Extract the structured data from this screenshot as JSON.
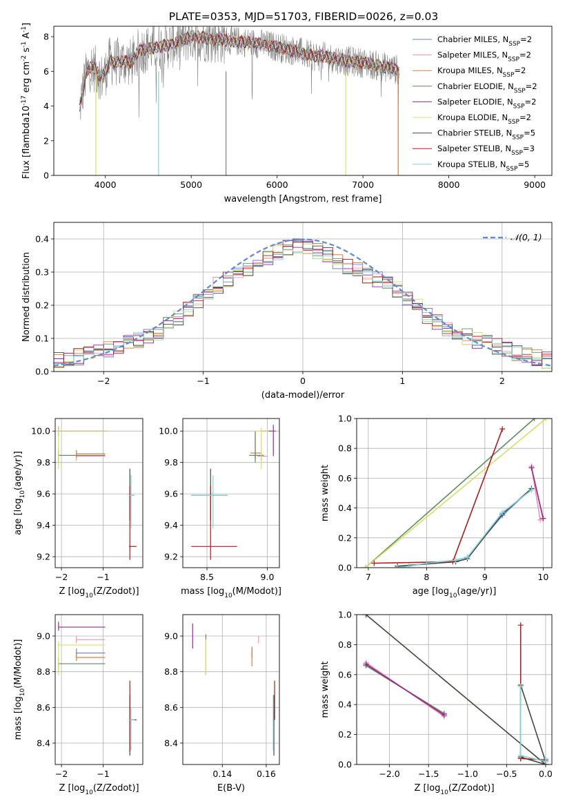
{
  "title": "PLATE=0353, MJD=51703, FIBERID=0026, z=0.03",
  "colors": {
    "series": [
      "#6b7fd7",
      "#f28fb1",
      "#e07b39",
      "#5a8f5a",
      "#a020a0",
      "#d8e060",
      "#444444",
      "#b01818",
      "#7fd3d8"
    ],
    "gauss": "#5b8ad8",
    "grey": "#808080"
  },
  "chart_data": [
    {
      "id": "spectrum",
      "type": "line",
      "title": "PLATE=0353, MJD=51703, FIBERID=0026, z=0.03",
      "xlabel": "wavelength [Angstrom, rest frame]",
      "ylabel": "Flux [f$_\\lambda$10$^{-17}$ erg cm$^{-2}$ s$^{-1}$ A$^{-1}$]",
      "xlim": [
        3400,
        9200
      ],
      "ylim": [
        0,
        8.6
      ],
      "xticks": [
        4000,
        5000,
        6000,
        7000,
        8000,
        9000
      ],
      "yticks": [
        0,
        2,
        4,
        6,
        8
      ],
      "grid": false,
      "legend_position": "top-right",
      "data_range": [
        3700,
        7420
      ],
      "series": [
        {
          "name": "Chabrier MILES, N$_{SSP}$=2"
        },
        {
          "name": "Salpeter MILES, N$_{SSP}$=2"
        },
        {
          "name": "Kroupa MILES, N$_{SSP}$=2"
        },
        {
          "name": "Chabrier ELODIE, N$_{SSP}$=2"
        },
        {
          "name": "Salpeter ELODIE, N$_{SSP}$=2"
        },
        {
          "name": "Kroupa ELODIE, N$_{SSP}$=2"
        },
        {
          "name": "Chabrier STELIB, N$_{SSP}$=5"
        },
        {
          "name": "Salpeter STELIB, N$_{SSP}$=3"
        },
        {
          "name": "Kroupa STELIB, N$_{SSP}$=5"
        }
      ],
      "model_x": [
        3700,
        3760,
        3800,
        3850,
        3900,
        3950,
        4000,
        4050,
        4100,
        4200,
        4300,
        4400,
        4500,
        4600,
        4700,
        4800,
        4900,
        5000,
        5200,
        5400,
        5600,
        5800,
        6000,
        6200,
        6400,
        6600,
        6800,
        7000,
        7200,
        7400
      ],
      "model_y": [
        3.8,
        5.5,
        6.1,
        6.3,
        6.0,
        5.6,
        5.9,
        6.6,
        6.5,
        6.6,
        6.5,
        7.2,
        7.3,
        7.4,
        7.5,
        7.6,
        7.8,
        8.0,
        7.9,
        7.8,
        7.7,
        7.6,
        7.4,
        7.2,
        6.9,
        6.8,
        6.6,
        6.5,
        6.3,
        6.1
      ]
    },
    {
      "id": "residuals",
      "type": "line",
      "xlabel": "(data-model)/error",
      "ylabel": "Normed distribution",
      "xlim": [
        -2.5,
        2.5
      ],
      "ylim": [
        0,
        0.45
      ],
      "xticks": [
        -2,
        -1,
        0,
        1,
        2
      ],
      "yticks": [
        0.0,
        0.1,
        0.2,
        0.3,
        0.4
      ],
      "grid": true,
      "legend_position": "top-right",
      "legend": "$\\mathcal{N}(0,1)$",
      "bin_width": 0.1,
      "hist_x": [
        -2.5,
        -2.0,
        -1.5,
        -1.2,
        -1.0,
        -0.8,
        -0.5,
        -0.2,
        0.0,
        0.2,
        0.5,
        0.8,
        1.0,
        1.2,
        1.5,
        2.0,
        2.5
      ],
      "hist_y": [
        0.03,
        0.06,
        0.11,
        0.17,
        0.23,
        0.27,
        0.32,
        0.37,
        0.38,
        0.36,
        0.31,
        0.27,
        0.24,
        0.18,
        0.12,
        0.07,
        0.03
      ]
    },
    {
      "id": "age-vs-Z",
      "type": "scatter",
      "xlabel": "Z [log$_{10}$($Z/Z_\\odot$)]",
      "ylabel": "age  [log$_{10}$($age/yr$)]",
      "xlim": [
        -2.15,
        -0.05
      ],
      "ylim": [
        9.13,
        10.08
      ],
      "xticks": [
        -2,
        -1
      ],
      "yticks": [
        9.2,
        9.4,
        9.6,
        9.8,
        10.0
      ],
      "grid": true,
      "errorbars": [
        {
          "s": 0,
          "x": -2.07,
          "y": 9.845,
          "xl": -2.07,
          "xh": -0.95,
          "yl": 9.82,
          "yh": 9.87
        },
        {
          "s": 1,
          "x": -1.64,
          "y": 9.84,
          "xl": -1.64,
          "xh": -0.95,
          "yl": 9.81,
          "yh": 9.87
        },
        {
          "s": 2,
          "x": -1.64,
          "y": 9.855,
          "xl": -1.64,
          "xh": -0.95,
          "yl": 9.83,
          "yh": 9.88
        },
        {
          "s": 3,
          "x": -2.07,
          "y": 9.845,
          "xl": -2.07,
          "xh": -0.95,
          "yl": 9.8,
          "yh": 9.88
        },
        {
          "s": 4,
          "x": -2.07,
          "y": 10.0,
          "xl": -2.07,
          "xh": -0.9,
          "yl": 9.97,
          "yh": 10.03
        },
        {
          "s": 5,
          "x": -2.07,
          "y": 10.0,
          "xl": -2.07,
          "xh": -0.9,
          "yl": 9.76,
          "yh": 10.03
        },
        {
          "s": 6,
          "x": -0.36,
          "y": 9.59,
          "xl": -0.38,
          "xh": -0.25,
          "yl": 9.43,
          "yh": 9.76
        },
        {
          "s": 7,
          "x": -0.36,
          "y": 9.265,
          "xl": -0.38,
          "xh": -0.2,
          "yl": 9.18,
          "yh": 9.65
        },
        {
          "s": 8,
          "x": -0.33,
          "y": 9.59,
          "xl": -0.38,
          "xh": -0.25,
          "yl": 9.38,
          "yh": 9.72
        }
      ]
    },
    {
      "id": "age-vs-mass",
      "type": "scatter",
      "xlabel": "mass [log$_{10}$($M/M_\\odot$)]",
      "ylabel": "",
      "xlim": [
        8.3,
        9.1
      ],
      "ylim": [
        9.13,
        10.08
      ],
      "xticks": [
        8.5,
        9.0
      ],
      "yticks": [
        9.2,
        9.4,
        9.6,
        9.8,
        10.0
      ],
      "grid": true,
      "errorbars": [
        {
          "s": 0,
          "x": 8.9,
          "y": 9.845,
          "xl": 8.85,
          "xh": 8.97,
          "yl": 9.82,
          "yh": 9.87
        },
        {
          "s": 1,
          "x": 8.95,
          "y": 9.84,
          "xl": 8.92,
          "xh": 9.0,
          "yl": 9.81,
          "yh": 9.87
        },
        {
          "s": 2,
          "x": 8.9,
          "y": 9.86,
          "xl": 8.86,
          "xh": 8.95,
          "yl": 9.83,
          "yh": 10.0
        },
        {
          "s": 3,
          "x": 8.9,
          "y": 9.845,
          "xl": 8.85,
          "xh": 8.97,
          "yl": 9.8,
          "yh": 10.0
        },
        {
          "s": 4,
          "x": 9.05,
          "y": 10.0,
          "xl": 8.95,
          "xh": 9.07,
          "yl": 9.84,
          "yh": 10.04
        },
        {
          "s": 5,
          "x": 8.95,
          "y": 10.0,
          "xl": 8.88,
          "xh": 9.01,
          "yl": 9.76,
          "yh": 10.02
        },
        {
          "s": 6,
          "x": 8.53,
          "y": 9.59,
          "xl": 8.37,
          "xh": 8.67,
          "yl": 9.43,
          "yh": 9.76
        },
        {
          "s": 7,
          "x": 8.53,
          "y": 9.265,
          "xl": 8.37,
          "xh": 8.75,
          "yl": 9.18,
          "yh": 9.65
        },
        {
          "s": 8,
          "x": 8.55,
          "y": 9.59,
          "xl": 8.37,
          "xh": 8.67,
          "yl": 9.38,
          "yh": 9.72
        }
      ]
    },
    {
      "id": "weight-vs-age",
      "type": "line",
      "xlabel": "age  [log$_{10}$($age/yr$)]",
      "ylabel": "mass weight",
      "xlim": [
        6.8,
        10.15
      ],
      "ylim": [
        0.0,
        1.0
      ],
      "xticks": [
        7,
        8,
        9,
        10
      ],
      "yticks": [
        0.0,
        0.2,
        0.4,
        0.6,
        0.8,
        1.0
      ],
      "grid": true,
      "series": [
        {
          "s": 0,
          "x": [
            7.5,
            7.7,
            8.0,
            8.5,
            8.7,
            9.3,
            9.8
          ],
          "y": [
            0.0,
            0.01,
            0.03,
            0.05,
            0.07,
            0.35,
            0.53
          ]
        },
        {
          "s": 1,
          "x": [
            9.8,
            9.95
          ],
          "y": [
            0.68,
            0.32
          ]
        },
        {
          "s": 2,
          "x": [
            9.8,
            10.0
          ],
          "y": [
            0.67,
            0.33
          ]
        },
        {
          "s": 3,
          "x": [
            6.95,
            9.85
          ],
          "y": [
            0.0,
            1.0
          ]
        },
        {
          "s": 4,
          "x": [
            9.8,
            10.0
          ],
          "y": [
            0.67,
            0.33
          ]
        },
        {
          "s": 5,
          "x": [
            6.95,
            10.05
          ],
          "y": [
            0.0,
            1.0
          ]
        },
        {
          "s": 6,
          "x": [
            7.5,
            8.5,
            8.7,
            9.3,
            9.8
          ],
          "y": [
            0.01,
            0.04,
            0.06,
            0.36,
            0.53
          ]
        },
        {
          "s": 7,
          "x": [
            7.1,
            8.45,
            9.3
          ],
          "y": [
            0.03,
            0.04,
            0.93
          ]
        },
        {
          "s": 8,
          "x": [
            7.5,
            7.7,
            8.0,
            8.5,
            8.7,
            9.3,
            9.8
          ],
          "y": [
            0.0,
            0.01,
            0.03,
            0.05,
            0.07,
            0.37,
            0.52
          ]
        }
      ]
    },
    {
      "id": "mass-vs-Z",
      "type": "scatter",
      "xlabel": "Z [log$_{10}$($Z/Z_\\odot$)]",
      "ylabel": "mass [log$_{10}$($M/M_\\odot$)]",
      "xlim": [
        -2.15,
        -0.05
      ],
      "ylim": [
        8.28,
        9.12
      ],
      "xticks": [
        -2,
        -1
      ],
      "yticks": [
        8.4,
        8.6,
        8.8,
        9.0
      ],
      "grid": true,
      "errorbars": [
        {
          "s": 0,
          "x": -1.64,
          "y": 8.905,
          "xl": -1.64,
          "xh": -0.95,
          "yl": 8.88,
          "yh": 8.93
        },
        {
          "s": 1,
          "x": -1.64,
          "y": 8.98,
          "xl": -1.64,
          "xh": -0.95,
          "yl": 8.96,
          "yh": 9.0
        },
        {
          "s": 2,
          "x": -1.64,
          "y": 8.88,
          "xl": -1.64,
          "xh": -0.95,
          "yl": 8.86,
          "yh": 8.9
        },
        {
          "s": 3,
          "x": -2.07,
          "y": 8.845,
          "xl": -2.07,
          "xh": -0.95,
          "yl": 8.8,
          "yh": 8.88
        },
        {
          "s": 4,
          "x": -2.07,
          "y": 9.05,
          "xl": -2.07,
          "xh": -0.95,
          "yl": 9.03,
          "yh": 9.08
        },
        {
          "s": 5,
          "x": -2.07,
          "y": 8.95,
          "xl": -2.07,
          "xh": -0.95,
          "yl": 8.78,
          "yh": 8.97
        },
        {
          "s": 6,
          "x": -0.36,
          "y": 8.53,
          "xl": -0.38,
          "xh": -0.25,
          "yl": 8.33,
          "yh": 8.67
        },
        {
          "s": 7,
          "x": -0.36,
          "y": 8.53,
          "xl": -0.38,
          "xh": -0.2,
          "yl": 8.35,
          "yh": 8.75
        },
        {
          "s": 8,
          "x": -0.33,
          "y": 8.53,
          "xl": -0.38,
          "xh": -0.25,
          "yl": 8.36,
          "yh": 8.6
        }
      ]
    },
    {
      "id": "mass-vs-EBV",
      "type": "scatter",
      "xlabel": "E(B-V)",
      "ylabel": "",
      "xlim": [
        0.122,
        0.166
      ],
      "ylim": [
        8.28,
        9.12
      ],
      "xticks": [
        0.14,
        0.16
      ],
      "yticks": [
        8.4,
        8.6,
        8.8,
        9.0
      ],
      "grid": true,
      "errorbars": [
        {
          "s": 0,
          "x": 0.1535,
          "y": 8.905,
          "xl": 0.1535,
          "xh": 0.1535,
          "yl": 8.88,
          "yh": 8.93
        },
        {
          "s": 1,
          "x": 0.1565,
          "y": 8.98,
          "xl": 0.1565,
          "xh": 0.1565,
          "yl": 8.96,
          "yh": 9.0
        },
        {
          "s": 2,
          "x": 0.1535,
          "y": 8.88,
          "xl": 0.1535,
          "xh": 0.1535,
          "yl": 8.83,
          "yh": 8.94
        },
        {
          "s": 3,
          "x": 0.1325,
          "y": 8.9,
          "xl": 0.1325,
          "xh": 0.1325,
          "yl": 8.79,
          "yh": 9.01
        },
        {
          "s": 4,
          "x": 0.1265,
          "y": 9.0,
          "xl": 0.1265,
          "xh": 0.1265,
          "yl": 8.93,
          "yh": 9.07
        },
        {
          "s": 5,
          "x": 0.1325,
          "y": 8.88,
          "xl": 0.1325,
          "xh": 0.1325,
          "yl": 8.78,
          "yh": 8.98
        },
        {
          "s": 6,
          "x": 0.1635,
          "y": 8.5,
          "xl": 0.1635,
          "xh": 0.1635,
          "yl": 8.33,
          "yh": 8.67
        },
        {
          "s": 7,
          "x": 0.1638,
          "y": 8.6,
          "xl": 0.1638,
          "xh": 0.1638,
          "yl": 8.53,
          "yh": 8.75
        },
        {
          "s": 8,
          "x": 0.1632,
          "y": 8.5,
          "xl": 0.1632,
          "xh": 0.1632,
          "yl": 8.36,
          "yh": 8.67
        }
      ]
    },
    {
      "id": "weight-vs-Z",
      "type": "line",
      "xlabel": "Z [log$_{10}$($Z/Z_\\odot$)]",
      "ylabel": "mass weight",
      "xlim": [
        -2.42,
        0.08
      ],
      "ylim": [
        0.0,
        1.0
      ],
      "xticks": [
        -2.0,
        -1.5,
        -1.0,
        -0.5,
        0.0
      ],
      "yticks": [
        0.0,
        0.2,
        0.4,
        0.6,
        0.8,
        1.0
      ],
      "grid": true,
      "series": [
        {
          "s": 0,
          "x": [
            -2.3,
            -1.3
          ],
          "y": [
            0.66,
            0.34
          ]
        },
        {
          "s": 1,
          "x": [
            -2.3,
            -1.3
          ],
          "y": [
            0.68,
            0.32
          ]
        },
        {
          "s": 2,
          "x": [
            -2.3,
            -1.3
          ],
          "y": [
            0.67,
            0.33
          ]
        },
        {
          "s": 3,
          "x": [
            -2.3,
            -1.3
          ],
          "y": [
            0.66,
            0.34
          ]
        },
        {
          "s": 4,
          "x": [
            -2.3,
            -1.3
          ],
          "y": [
            0.67,
            0.33
          ]
        },
        {
          "s": 5,
          "x": [
            -2.3,
            0.0
          ],
          "y": [
            1.0,
            0.0
          ]
        },
        {
          "s": 6,
          "x": [
            -2.3,
            0.0,
            -0.32,
            -0.32,
            0.0
          ],
          "y": [
            1.0,
            0.0,
            0.05,
            0.53,
            0.02
          ]
        },
        {
          "s": 7,
          "x": [
            -0.32,
            -0.32,
            -0.32,
            0.0,
            0.0
          ],
          "y": [
            0.93,
            0.04,
            0.04,
            0.03,
            0.0
          ]
        },
        {
          "s": 8,
          "x": [
            -0.32,
            -0.32,
            0.0,
            0.0
          ],
          "y": [
            0.52,
            0.06,
            0.02,
            0.04
          ]
        }
      ]
    }
  ]
}
